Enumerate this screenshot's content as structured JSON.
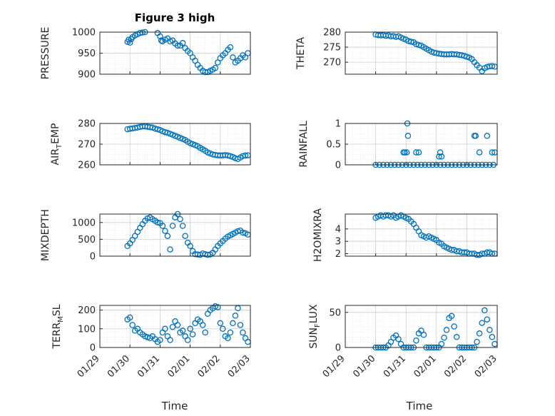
{
  "figure": {
    "title": "Figure 3 high",
    "xlabel": "Time",
    "x_ticks": [
      "01/29",
      "01/30",
      "01/31",
      "02/01",
      "02/02",
      "02/03"
    ],
    "marker_color": "#0072bd",
    "grid": true
  },
  "chart_data": [
    {
      "type": "scatter",
      "id": "pressure",
      "ylabel": "PRESSURE",
      "ylim": [
        900,
        1000
      ],
      "yticks": [
        "1000",
        "950",
        "900"
      ],
      "x": [
        "01/29 22:00",
        "01/29 23:00",
        "01/30 00:00",
        "01/30 01:00",
        "01/30 02:00",
        "01/30 04:00",
        "01/30 06:00",
        "01/30 08:00",
        "01/30 10:00",
        "01/30 12:00",
        "01/30 14:00",
        "01/30 16:00",
        "01/30 18:00",
        "01/30 20:00",
        "01/30 22:00",
        "01/31 00:00",
        "01/31 01:00",
        "01/31 02:00",
        "01/31 04:00",
        "01/31 06:00",
        "01/31 08:00",
        "01/31 10:00",
        "01/31 12:00",
        "01/31 14:00",
        "01/31 16:00",
        "01/31 18:00",
        "01/31 20:00",
        "01/31 22:00",
        "02/01 00:00",
        "02/01 02:00",
        "02/01 04:00",
        "02/01 06:00",
        "02/01 08:00",
        "02/01 10:00",
        "02/01 12:00",
        "02/01 14:00",
        "02/01 16:00",
        "02/01 18:00",
        "02/01 20:00",
        "02/01 22:00",
        "02/02 00:00",
        "02/02 02:00",
        "02/02 04:00",
        "02/02 06:00",
        "02/02 08:00",
        "02/02 10:00",
        "02/02 12:00",
        "02/02 14:00",
        "02/02 16:00",
        "02/02 18:00",
        "02/02 20:00",
        "02/02 22:00"
      ],
      "y": [
        977,
        982,
        975,
        983,
        988,
        992,
        995,
        998,
        999,
        1000,
        1001,
        1001,
        1002,
        1001,
        998,
        990,
        980,
        978,
        982,
        985,
        978,
        980,
        973,
        968,
        968,
        974,
        962,
        955,
        950,
        940,
        932,
        922,
        915,
        908,
        905,
        905,
        908,
        911,
        915,
        928,
        938,
        945,
        950,
        958,
        964,
        940,
        928,
        932,
        938,
        945,
        940,
        950
      ]
    },
    {
      "type": "scatter",
      "id": "theta",
      "ylabel": "THETA",
      "ylim": [
        266,
        280
      ],
      "yticks": [
        "280",
        "275",
        "270"
      ],
      "x": [
        "01/30 00:00",
        "01/30 02:00",
        "01/30 04:00",
        "01/30 06:00",
        "01/30 08:00",
        "01/30 10:00",
        "01/30 12:00",
        "01/30 14:00",
        "01/30 16:00",
        "01/30 18:00",
        "01/30 20:00",
        "01/30 22:00",
        "01/31 00:00",
        "01/31 02:00",
        "01/31 04:00",
        "01/31 06:00",
        "01/31 08:00",
        "01/31 10:00",
        "01/31 12:00",
        "01/31 14:00",
        "01/31 16:00",
        "01/31 18:00",
        "01/31 20:00",
        "01/31 22:00",
        "02/01 00:00",
        "02/01 02:00",
        "02/01 04:00",
        "02/01 06:00",
        "02/01 08:00",
        "02/01 10:00",
        "02/01 12:00",
        "02/01 14:00",
        "02/01 16:00",
        "02/01 18:00",
        "02/01 20:00",
        "02/01 22:00",
        "02/02 00:00",
        "02/02 02:00",
        "02/02 04:00",
        "02/02 06:00",
        "02/02 08:00",
        "02/02 10:00",
        "02/02 12:00",
        "02/02 14:00",
        "02/02 16:00",
        "02/02 18:00",
        "02/02 20:00",
        "02/02 22:00"
      ],
      "y": [
        279.2,
        279.0,
        278.9,
        279.0,
        278.8,
        278.9,
        278.6,
        278.7,
        278.4,
        278.6,
        278.2,
        277.8,
        277.5,
        277.0,
        276.8,
        276.6,
        276.0,
        275.7,
        275.5,
        275.0,
        274.5,
        274.0,
        273.5,
        273.2,
        273.0,
        272.8,
        272.7,
        272.6,
        272.6,
        272.6,
        272.7,
        272.6,
        272.6,
        272.4,
        272.3,
        272.1,
        271.8,
        271.5,
        271.0,
        270.0,
        269.0,
        268.2,
        267.0,
        268.0,
        268.4,
        268.6,
        268.7,
        268.5
      ]
    },
    {
      "type": "scatter",
      "id": "air_temp",
      "ylabel": "AIR_TEMP",
      "ylim": [
        260,
        280
      ],
      "yticks": [
        "280",
        "270",
        "260"
      ],
      "x": [
        "01/29 22:00",
        "01/30 00:00",
        "01/30 02:00",
        "01/30 04:00",
        "01/30 06:00",
        "01/30 08:00",
        "01/30 10:00",
        "01/30 12:00",
        "01/30 14:00",
        "01/30 16:00",
        "01/30 18:00",
        "01/30 20:00",
        "01/30 22:00",
        "01/31 00:00",
        "01/31 02:00",
        "01/31 04:00",
        "01/31 06:00",
        "01/31 08:00",
        "01/31 10:00",
        "01/31 12:00",
        "01/31 14:00",
        "01/31 16:00",
        "01/31 18:00",
        "01/31 20:00",
        "01/31 22:00",
        "02/01 00:00",
        "02/01 02:00",
        "02/01 04:00",
        "02/01 06:00",
        "02/01 08:00",
        "02/01 10:00",
        "02/01 12:00",
        "02/01 14:00",
        "02/01 16:00",
        "02/01 18:00",
        "02/01 20:00",
        "02/01 22:00",
        "02/02 00:00",
        "02/02 02:00",
        "02/02 04:00",
        "02/02 06:00",
        "02/02 08:00",
        "02/02 10:00",
        "02/02 12:00",
        "02/02 14:00",
        "02/02 16:00",
        "02/02 18:00",
        "02/02 20:00",
        "02/02 22:00"
      ],
      "y": [
        277.2,
        277.4,
        277.6,
        277.8,
        278.0,
        278.3,
        278.5,
        278.6,
        278.4,
        278.2,
        278.0,
        277.5,
        277.2,
        276.8,
        276.2,
        275.8,
        275.5,
        275.0,
        274.5,
        274.0,
        273.5,
        273.0,
        272.5,
        272.0,
        271.2,
        270.5,
        270.0,
        269.5,
        269.0,
        268.2,
        267.5,
        266.8,
        266.0,
        265.5,
        265.0,
        264.8,
        264.6,
        264.5,
        264.6,
        264.7,
        264.5,
        264.2,
        263.8,
        263.2,
        262.8,
        263.5,
        264.2,
        264.5,
        264.6
      ]
    },
    {
      "type": "scatter",
      "id": "rainfall",
      "ylabel": "RAINFALL",
      "ylim": [
        0,
        1
      ],
      "yticks": [
        "1",
        "0.5",
        "0"
      ],
      "x": [
        "01/30 00:00",
        "01/30 03:00",
        "01/30 06:00",
        "01/30 09:00",
        "01/30 12:00",
        "01/30 15:00",
        "01/30 18:00",
        "01/30 21:00",
        "01/31 00:00",
        "01/31 03:00",
        "01/31 06:00",
        "01/31 09:00",
        "01/31 12:00",
        "01/31 15:00",
        "01/31 18:00",
        "01/31 21:00",
        "02/01 00:00",
        "02/01 03:00",
        "02/01 06:00",
        "02/01 09:00",
        "02/01 12:00",
        "02/01 15:00",
        "02/01 18:00",
        "02/01 21:00",
        "02/02 00:00",
        "02/02 03:00",
        "02/02 06:00",
        "02/02 09:00",
        "02/02 12:00",
        "02/02 15:00",
        "02/02 18:00",
        "02/02 21:00",
        "01/30 22:00",
        "01/30 23:00",
        "01/31 00:30",
        "01/31 01:00",
        "01/31 01:30",
        "01/31 08:00",
        "01/31 10:00",
        "02/01 02:00",
        "02/01 03:00",
        "02/01 04:00",
        "02/02 06:00",
        "02/02 07:00",
        "02/02 10:00",
        "02/02 16:00",
        "02/02 20:00",
        "02/02 22:00"
      ],
      "y": [
        0,
        0,
        0,
        0,
        0,
        0,
        0,
        0,
        0,
        0,
        0,
        0,
        0,
        0,
        0,
        0,
        0,
        0,
        0,
        0,
        0,
        0,
        0,
        0,
        0,
        0,
        0,
        0,
        0,
        0,
        0,
        0,
        0.3,
        0.3,
        0.3,
        1.0,
        0.7,
        0.3,
        0.3,
        0.2,
        0.3,
        0.2,
        0.7,
        0.7,
        0.3,
        0.7,
        0.3,
        0.3
      ]
    },
    {
      "type": "scatter",
      "id": "mixdepth",
      "ylabel": "MIXDEPTH",
      "ylim": [
        0,
        1250
      ],
      "yticks": [
        "1000",
        "500",
        "0"
      ],
      "x": [
        "01/29 22:00",
        "01/30 00:00",
        "01/30 02:00",
        "01/30 04:00",
        "01/30 06:00",
        "01/30 08:00",
        "01/30 10:00",
        "01/30 12:00",
        "01/30 14:00",
        "01/30 16:00",
        "01/30 18:00",
        "01/30 20:00",
        "01/30 22:00",
        "01/31 00:00",
        "01/31 02:00",
        "01/31 04:00",
        "01/31 06:00",
        "01/31 08:00",
        "01/31 10:00",
        "01/31 12:00",
        "01/31 14:00",
        "01/31 16:00",
        "01/31 18:00",
        "01/31 20:00",
        "01/31 22:00",
        "02/01 00:00",
        "02/01 02:00",
        "02/01 04:00",
        "02/01 06:00",
        "02/01 08:00",
        "02/01 10:00",
        "02/01 12:00",
        "02/01 14:00",
        "02/01 16:00",
        "02/01 18:00",
        "02/01 20:00",
        "02/01 22:00",
        "02/02 00:00",
        "02/02 02:00",
        "02/02 04:00",
        "02/02 06:00",
        "02/02 08:00",
        "02/02 10:00",
        "02/02 12:00",
        "02/02 14:00",
        "02/02 16:00",
        "02/02 18:00",
        "02/02 20:00",
        "02/02 22:00"
      ],
      "y": [
        300,
        380,
        480,
        600,
        720,
        840,
        950,
        1050,
        1120,
        1150,
        1100,
        1050,
        1000,
        980,
        900,
        750,
        600,
        200,
        900,
        1150,
        1250,
        1100,
        900,
        600,
        400,
        300,
        150,
        60,
        50,
        40,
        80,
        60,
        40,
        50,
        100,
        200,
        300,
        380,
        450,
        520,
        580,
        620,
        660,
        700,
        740,
        760,
        700,
        680,
        640
      ]
    },
    {
      "type": "scatter",
      "id": "h2omixra",
      "ylabel": "H2OMIXRA",
      "ylim": [
        1.8,
        5.2
      ],
      "yticks": [
        "4",
        "3",
        "2"
      ],
      "x": [
        "01/30 00:00",
        "01/30 02:00",
        "01/30 04:00",
        "01/30 06:00",
        "01/30 08:00",
        "01/30 10:00",
        "01/30 12:00",
        "01/30 14:00",
        "01/30 16:00",
        "01/30 18:00",
        "01/30 20:00",
        "01/30 22:00",
        "01/31 00:00",
        "01/31 02:00",
        "01/31 04:00",
        "01/31 06:00",
        "01/31 08:00",
        "01/31 10:00",
        "01/31 12:00",
        "01/31 14:00",
        "01/31 16:00",
        "01/31 18:00",
        "01/31 20:00",
        "01/31 22:00",
        "02/01 00:00",
        "02/01 02:00",
        "02/01 04:00",
        "02/01 06:00",
        "02/01 08:00",
        "02/01 10:00",
        "02/01 12:00",
        "02/01 14:00",
        "02/01 16:00",
        "02/01 18:00",
        "02/01 20:00",
        "02/01 22:00",
        "02/02 00:00",
        "02/02 02:00",
        "02/02 04:00",
        "02/02 06:00",
        "02/02 08:00",
        "02/02 10:00",
        "02/02 12:00",
        "02/02 14:00",
        "02/02 16:00",
        "02/02 18:00",
        "02/02 20:00",
        "02/02 22:00"
      ],
      "y": [
        4.9,
        5.0,
        5.1,
        5.0,
        5.1,
        5.1,
        5.0,
        5.1,
        4.9,
        5.0,
        5.1,
        5.0,
        4.9,
        4.8,
        4.6,
        4.4,
        4.1,
        3.8,
        3.5,
        3.4,
        3.3,
        3.4,
        3.3,
        3.2,
        3.1,
        2.9,
        2.8,
        2.6,
        2.5,
        2.4,
        2.3,
        2.3,
        2.2,
        2.2,
        2.1,
        2.1,
        2.1,
        2.0,
        2.0,
        2.0,
        1.9,
        1.9,
        2.0,
        2.0,
        2.1,
        2.1,
        2.0,
        2.0
      ]
    },
    {
      "type": "scatter",
      "id": "terr_msl",
      "ylabel": "TERR_MSL",
      "ylim": [
        0,
        225
      ],
      "yticks": [
        "200",
        "100",
        "0"
      ],
      "x": [
        "01/29 22:00",
        "01/30 00:00",
        "01/30 02:00",
        "01/30 04:00",
        "01/30 06:00",
        "01/30 08:00",
        "01/30 10:00",
        "01/30 12:00",
        "01/30 14:00",
        "01/30 16:00",
        "01/30 18:00",
        "01/30 20:00",
        "01/30 22:00",
        "01/31 00:00",
        "01/31 02:00",
        "01/31 04:00",
        "01/31 06:00",
        "01/31 08:00",
        "01/31 10:00",
        "01/31 12:00",
        "01/31 14:00",
        "01/31 16:00",
        "01/31 18:00",
        "01/31 20:00",
        "01/31 22:00",
        "02/01 00:00",
        "02/01 02:00",
        "02/01 04:00",
        "02/01 06:00",
        "02/01 08:00",
        "02/01 10:00",
        "02/01 12:00",
        "02/01 14:00",
        "02/01 16:00",
        "02/01 18:00",
        "02/01 20:00",
        "02/01 22:00",
        "02/02 00:00",
        "02/02 02:00",
        "02/02 04:00",
        "02/02 06:00",
        "02/02 08:00",
        "02/02 10:00",
        "02/02 12:00",
        "02/02 14:00",
        "02/02 16:00",
        "02/02 18:00",
        "02/02 20:00",
        "02/02 22:00"
      ],
      "y": [
        150,
        160,
        120,
        90,
        100,
        80,
        70,
        60,
        55,
        50,
        60,
        45,
        30,
        40,
        80,
        100,
        60,
        40,
        110,
        140,
        120,
        80,
        90,
        60,
        40,
        100,
        70,
        130,
        150,
        140,
        120,
        80,
        180,
        200,
        210,
        220,
        215,
        130,
        100,
        60,
        50,
        80,
        130,
        170,
        210,
        120,
        80,
        50,
        30
      ]
    },
    {
      "type": "scatter",
      "id": "sun_flux",
      "ylabel": "SUN_FLUX",
      "ylim": [
        0,
        60
      ],
      "yticks": [
        "50",
        "0"
      ],
      "x": [
        "01/30 00:00",
        "01/30 02:00",
        "01/30 04:00",
        "01/30 06:00",
        "01/30 08:00",
        "01/30 10:00",
        "01/30 12:00",
        "01/30 14:00",
        "01/30 16:00",
        "01/30 18:00",
        "01/30 20:00",
        "01/30 22:00",
        "01/31 00:00",
        "01/31 02:00",
        "01/31 04:00",
        "01/31 06:00",
        "01/31 08:00",
        "01/31 10:00",
        "01/31 12:00",
        "01/31 14:00",
        "01/31 16:00",
        "01/31 18:00",
        "01/31 20:00",
        "01/31 22:00",
        "02/01 00:00",
        "02/01 02:00",
        "02/01 04:00",
        "02/01 06:00",
        "02/01 08:00",
        "02/01 10:00",
        "02/01 12:00",
        "02/01 14:00",
        "02/01 16:00",
        "02/01 18:00",
        "02/01 20:00",
        "02/01 22:00",
        "02/02 00:00",
        "02/02 02:00",
        "02/02 04:00",
        "02/02 06:00",
        "02/02 08:00",
        "02/02 10:00",
        "02/02 12:00",
        "02/02 14:00",
        "02/02 16:00",
        "02/02 18:00",
        "02/02 20:00",
        "02/02 22:00"
      ],
      "y": [
        0,
        0,
        0,
        0,
        0,
        3,
        8,
        14,
        17,
        12,
        5,
        0,
        0,
        0,
        0,
        0,
        10,
        20,
        24,
        18,
        0,
        0,
        0,
        0,
        0,
        0,
        5,
        14,
        25,
        42,
        45,
        30,
        15,
        0,
        0,
        0,
        0,
        0,
        0,
        0,
        8,
        20,
        35,
        53,
        40,
        25,
        15,
        5
      ]
    }
  ]
}
